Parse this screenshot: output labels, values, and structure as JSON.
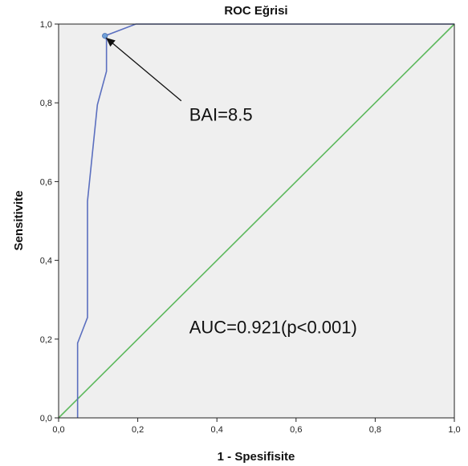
{
  "chart_data": {
    "type": "line",
    "title": "ROC Eğrisi",
    "xlabel": "1 - Spesifisite",
    "ylabel": "Sensitivite",
    "xlim": [
      0,
      1
    ],
    "ylim": [
      0,
      1
    ],
    "x_ticks": [
      "0,0",
      "0,2",
      "0,4",
      "0,6",
      "0,8",
      "1,0"
    ],
    "y_ticks": [
      "0,0",
      "0,2",
      "0,4",
      "0,6",
      "0,8",
      "1,0"
    ],
    "grid": false,
    "series": [
      {
        "color": "#5b6fbf",
        "x": [
          0.048,
          0.048,
          0.05,
          0.073,
          0.073,
          0.098,
          0.121,
          0.121,
          0.117,
          0.195,
          1.0
        ],
        "y": [
          0.0,
          0.19,
          0.195,
          0.255,
          0.55,
          0.795,
          0.88,
          0.96,
          0.97,
          1.0,
          1.0
        ]
      },
      {
        "color": "#5cb85c",
        "x": [
          0,
          1
        ],
        "y": [
          0,
          1
        ]
      }
    ],
    "marker": {
      "x": 0.117,
      "y": 0.97,
      "color": "#6fa0d8"
    },
    "annotations": [
      {
        "text": "BAI=8.5",
        "x": 0.33,
        "y": 0.755,
        "arrow_to": {
          "x": 0.12,
          "y": 0.965
        },
        "arrow_from": {
          "x": 0.31,
          "y": 0.805
        }
      },
      {
        "text": "AUC=0.921(p<0.001)",
        "x": 0.33,
        "y": 0.215
      }
    ],
    "colors": {
      "plot_background": "#efefef",
      "frame": "#222222"
    }
  }
}
